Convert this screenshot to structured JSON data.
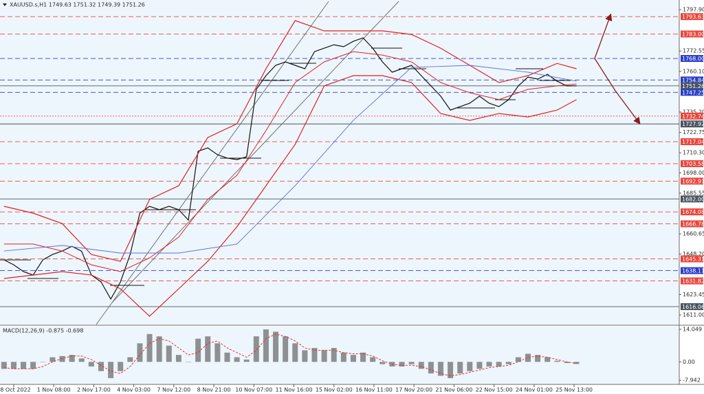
{
  "chart_data": [
    {
      "type": "line",
      "title": "XAUUSD.s,H1 1749.63 1751.32 1749.39 1751.26",
      "xlim": [
        -11.3,
        548.7
      ],
      "xticks": [
        {
          "value": 0,
          "label": "28 Oct 2022"
        },
        {
          "value": 33,
          "label": "1 Nov 08:00"
        },
        {
          "value": 66,
          "label": "2 Nov 17:00"
        },
        {
          "value": 99,
          "label": "4 Nov 03:00"
        },
        {
          "value": 132,
          "label": "7 Nov 12:00"
        },
        {
          "value": 165,
          "label": "8 Nov 21:00"
        },
        {
          "value": 198,
          "label": "10 Nov 07:00"
        },
        {
          "value": 231,
          "label": "11 Nov 16:00"
        },
        {
          "value": 264,
          "label": "15 Nov 02:00"
        },
        {
          "value": 297,
          "label": "16 Nov 11:00"
        },
        {
          "value": 330,
          "label": "17 Nov 20:00"
        },
        {
          "value": 363,
          "label": "21 Nov 06:00"
        },
        {
          "value": 396,
          "label": "22 Nov 15:00"
        },
        {
          "value": 429,
          "label": "24 Nov 01:00"
        },
        {
          "value": 462,
          "label": "25 Nov 13:00"
        }
      ],
      "ylim": [
        1605.1,
        1803.8
      ],
      "yticks": [
        {
          "value": 1797.9,
          "label": "1797.90"
        },
        1772.55,
        {
          "value": 1760.1,
          "label": "1760.10"
        },
        {
          "value": 1735.2,
          "label": "1735.20"
        },
        1722.75,
        {
          "value": 1710.3,
          "label": "1710.30"
        },
        {
          "value": 1698,
          "label": "1698.00"
        },
        1685.55,
        1660.65,
        {
          "value": 1648.2,
          "label": "1648.20"
        },
        1623.45,
        {
          "value": 1611,
          "label": "1611.00"
        }
      ],
      "series": [
        {
          "color": "#111111",
          "width": 1.2,
          "x": [
            -8,
            0,
            8,
            16,
            24,
            32,
            40,
            48,
            56,
            64,
            72,
            80,
            88,
            96,
            104,
            112,
            120,
            128,
            136,
            144,
            152,
            160,
            168,
            176,
            184,
            192,
            200,
            208,
            216,
            224,
            232,
            240,
            248,
            256,
            264,
            272,
            280,
            288,
            296,
            304,
            312,
            320,
            328,
            336,
            344,
            352,
            360,
            368,
            376,
            384,
            392,
            400,
            408,
            416,
            424,
            432,
            440,
            448,
            456,
            464
          ],
          "values": [
            1644.7,
            1641.7,
            1637.5,
            1635.4,
            1644.7,
            1648,
            1650.1,
            1653,
            1650,
            1635.4,
            1631.2,
            1620.7,
            1631.2,
            1648,
            1673.3,
            1677.5,
            1675.4,
            1677.5,
            1675.4,
            1669.1,
            1711.2,
            1713.3,
            1709.1,
            1707,
            1706.1,
            1707.8,
            1749.1,
            1757.5,
            1763.8,
            1765.9,
            1763.8,
            1761.7,
            1772.2,
            1774.3,
            1776.4,
            1775.2,
            1778.5,
            1780.6,
            1774.3,
            1765.9,
            1759.6,
            1761.7,
            1763.8,
            1757.5,
            1751.2,
            1744.9,
            1736.4,
            1738.5,
            1740.6,
            1744.9,
            1740.6,
            1738.5,
            1742.8,
            1751.2,
            1756.6,
            1755.4,
            1758.3,
            1754.1,
            1751.2,
            1751.26
          ]
        },
        {
          "color": "#e02020",
          "width": 1.2,
          "x": [
            -8,
            16,
            40,
            64,
            88,
            112,
            136,
            160,
            184,
            208,
            232,
            256,
            280,
            304,
            328,
            352,
            376,
            400,
            424,
            448,
            464
          ],
          "values": [
            1677.5,
            1673.3,
            1666.9,
            1648,
            1643.8,
            1681.7,
            1690.1,
            1719.6,
            1728,
            1761.7,
            1791.2,
            1784.9,
            1784.9,
            1784.9,
            1782.7,
            1774.3,
            1763.8,
            1753.3,
            1757.5,
            1765,
            1761.7
          ]
        },
        {
          "color": "#e02020",
          "width": 1,
          "x": [
            -8,
            16,
            40,
            64,
            88,
            112,
            136,
            160,
            184,
            208,
            232,
            256,
            280,
            304,
            328,
            352,
            376,
            400,
            424,
            448,
            464
          ],
          "values": [
            1654.4,
            1654.4,
            1650.1,
            1641.7,
            1637.5,
            1645.9,
            1658.6,
            1681.7,
            1696.5,
            1723.8,
            1753.3,
            1765.9,
            1772.2,
            1770.1,
            1765.9,
            1753.3,
            1747,
            1742.8,
            1749.1,
            1751.2,
            1752.4
          ]
        },
        {
          "color": "#e02020",
          "width": 1.2,
          "x": [
            -8,
            16,
            40,
            64,
            88,
            112,
            136,
            160,
            184,
            208,
            232,
            256,
            280,
            304,
            328,
            352,
            376,
            400,
            424,
            448,
            464
          ],
          "values": [
            1633.3,
            1635.4,
            1637.5,
            1635.4,
            1627,
            1610.2,
            1627,
            1643.8,
            1664.9,
            1690.1,
            1715.4,
            1751.2,
            1757.5,
            1757.5,
            1753.3,
            1734.3,
            1730.1,
            1734.3,
            1732.2,
            1736.4,
            1742.8
          ]
        },
        {
          "color": "#5a6fd8",
          "width": 0.9,
          "x": [
            -8,
            40,
            88,
            136,
            184,
            232,
            280,
            328,
            376,
            424,
            464
          ],
          "values": [
            1650.1,
            1653.5,
            1648.9,
            1648.9,
            1654.4,
            1690.1,
            1730.1,
            1762.5,
            1763.8,
            1759.6,
            1754.1
          ]
        }
      ],
      "levels": [
        {
          "price": 1793.63,
          "color": "#e8463c",
          "style": "dashed"
        },
        {
          "price": {
            "value": 1783,
            "label": "1783.00"
          },
          "color": "#e8463c",
          "style": "dashed"
        },
        {
          "price": {
            "value": 1768,
            "label": "1768.00"
          },
          "color": "#2b3fc9",
          "style": "dashed"
        },
        {
          "price": 1754.84,
          "color": "#2b3fc9",
          "style": "dashed"
        },
        {
          "price": 1751.26,
          "color": "#4a5560",
          "style": "solid"
        },
        {
          "price": 1747.25,
          "color": "#2b3fc9",
          "style": "dashed"
        },
        {
          "price": 1732.74,
          "color": "#e8463c",
          "style": "dotted"
        },
        {
          "price": 1727.92,
          "color": "#4a5560",
          "style": "solid"
        },
        {
          "price": 1717.04,
          "color": "#e8463c",
          "style": "dashed"
        },
        {
          "price": 1703.58,
          "color": "#e8463c",
          "style": "dashed"
        },
        {
          "price": 1692.91,
          "color": "#e8463c",
          "style": "dashed"
        },
        {
          "price": {
            "value": 1682,
            "label": "1682.00"
          },
          "color": "#4a5560",
          "style": "solid"
        },
        {
          "price": 1674.08,
          "color": "#e8463c",
          "style": "dashed"
        },
        {
          "price": 1666.78,
          "color": "#e8463c",
          "style": "dashed"
        },
        {
          "price": 1645.31,
          "color": "#e8463c",
          "style": "dashed"
        },
        {
          "price": 1638.11,
          "color": "#2b3fc9",
          "style": "dashed"
        },
        {
          "price": 1631.82,
          "color": "#e8463c",
          "style": "dashed"
        },
        {
          "price": 1616.06,
          "color": "#4a5560",
          "style": "solid"
        }
      ]
    },
    {
      "type": "bar",
      "title": "MACD(12,26,9) -0.875 -0.698",
      "ylim": [
        -9.4,
        15.2
      ],
      "yticks": [
        14.049,
        {
          "value": 0,
          "label": "0.00"
        },
        -7.942
      ],
      "x": [
        -8,
        0,
        8,
        16,
        24,
        32,
        40,
        48,
        56,
        64,
        72,
        80,
        88,
        96,
        104,
        112,
        120,
        128,
        136,
        144,
        152,
        160,
        168,
        176,
        184,
        192,
        200,
        208,
        216,
        224,
        232,
        240,
        248,
        256,
        264,
        272,
        280,
        288,
        296,
        304,
        312,
        320,
        328,
        336,
        344,
        352,
        360,
        368,
        376,
        384,
        392,
        400,
        408,
        416,
        424,
        432,
        440,
        448,
        456,
        464
      ],
      "series": [
        {
          "type": "bar",
          "color": "#6e6e6e",
          "values": [
            -3,
            -3,
            -3,
            -3,
            0,
            2,
            2.5,
            3,
            1.5,
            -2,
            -4,
            -7,
            -4,
            2,
            8,
            12,
            11,
            7,
            3,
            0,
            10,
            11,
            8,
            4,
            2,
            1,
            11,
            14,
            13,
            11,
            8,
            5,
            6,
            5,
            6,
            4,
            3,
            4,
            2,
            -1,
            -2,
            -2,
            -1,
            -3,
            -5,
            -6,
            -7,
            -5,
            -4,
            -3,
            -2,
            -2,
            -1,
            2,
            3.5,
            3,
            2,
            0.5,
            -0.5,
            -0.9
          ]
        },
        {
          "type": "line",
          "color": "#e03030",
          "values": [
            -2.5,
            -3,
            -3,
            -3,
            -2,
            0,
            1.5,
            2.5,
            2.5,
            1,
            -1.5,
            -4,
            -5,
            -2,
            3,
            8,
            10,
            9,
            6,
            3,
            4,
            8,
            9,
            6,
            4,
            2,
            5,
            10,
            12,
            11,
            9,
            6,
            5,
            5,
            5,
            4,
            3.5,
            3.5,
            2.5,
            0.5,
            -1,
            -1.5,
            -1.5,
            -2,
            -3.5,
            -5,
            -6,
            -5.5,
            -4.5,
            -3.5,
            -2.5,
            -2,
            -1.5,
            0,
            2,
            2.5,
            2,
            1,
            0,
            -0.7
          ]
        }
      ]
    }
  ]
}
